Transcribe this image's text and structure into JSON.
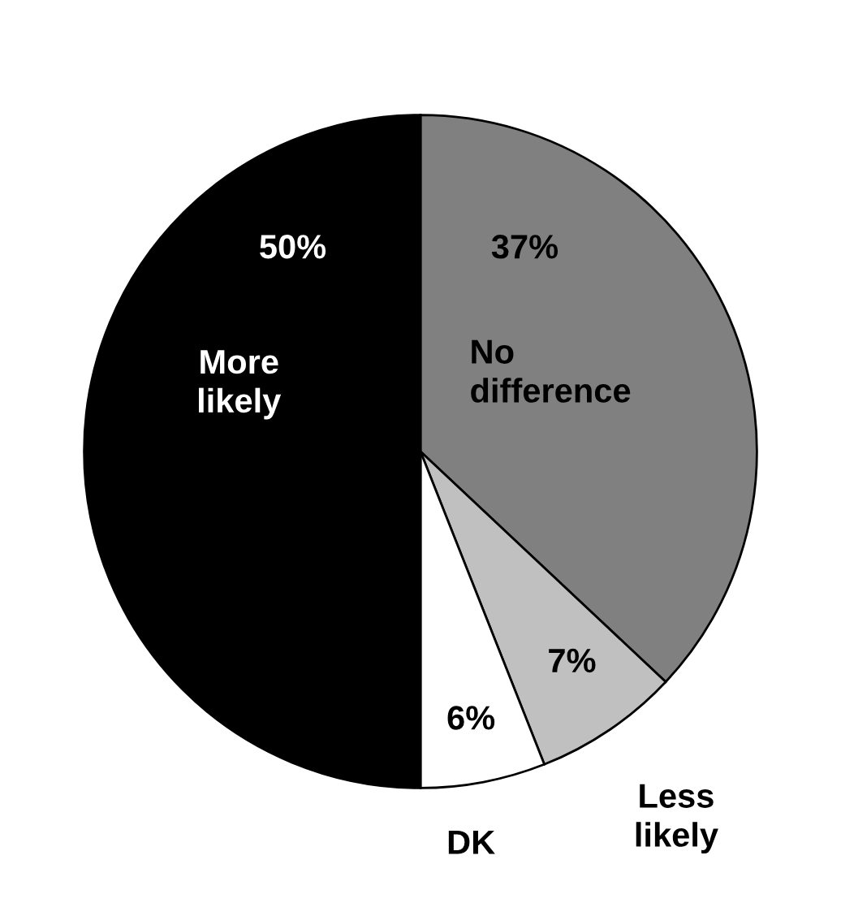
{
  "chart_data": {
    "type": "pie",
    "categories": [
      "No difference",
      "Less likely",
      "DK",
      "More likely"
    ],
    "values": [
      37,
      7,
      6,
      50
    ],
    "colors": [
      "#808080",
      "#c0c0c0",
      "#ffffff",
      "#000000"
    ],
    "value_labels": [
      "37%",
      "7%",
      "6%",
      "50%"
    ],
    "legend": false
  }
}
